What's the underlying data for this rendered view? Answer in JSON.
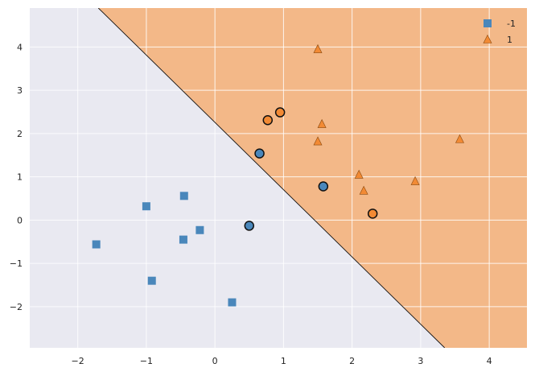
{
  "chart_data": {
    "type": "scatter",
    "title": "",
    "xlabel": "",
    "ylabel": "",
    "xlim": [
      -2.7,
      4.55
    ],
    "ylim": [
      -2.95,
      4.9
    ],
    "x_ticks": [
      -2,
      -1,
      0,
      1,
      2,
      3,
      4
    ],
    "y_ticks": [
      -2,
      -1,
      0,
      1,
      2,
      3,
      4
    ],
    "x_tick_labels": [
      "−2",
      "−1",
      "0",
      "1",
      "2",
      "3",
      "4"
    ],
    "y_tick_labels": [
      "−2",
      "−1",
      "0",
      "1",
      "2",
      "3",
      "4"
    ],
    "grid": true,
    "background": "#e9e9f1",
    "decision_boundary": {
      "points": [
        [
          -1.7,
          4.9
        ],
        [
          3.35,
          -2.95
        ]
      ],
      "region_color_class_1": "#f3b888",
      "region_color_class_neg1": "#e9e9f1"
    },
    "legend": {
      "position": "top-right",
      "entries": [
        {
          "label": "-1",
          "marker": "square",
          "color": "#4a87bb"
        },
        {
          "label": "1",
          "marker": "triangle",
          "color": "#f28a34"
        }
      ]
    },
    "series": [
      {
        "name": "-1",
        "marker": "square",
        "color": "#4a87bb",
        "points": [
          [
            -1.73,
            -0.56
          ],
          [
            -1.0,
            0.32
          ],
          [
            -0.92,
            -1.4
          ],
          [
            -0.45,
            0.56
          ],
          [
            -0.46,
            -0.45
          ],
          [
            -0.22,
            -0.23
          ],
          [
            0.25,
            -1.9
          ]
        ]
      },
      {
        "name": "1",
        "marker": "triangle",
        "color": "#f28a34",
        "points": [
          [
            1.5,
            3.95
          ],
          [
            1.56,
            2.22
          ],
          [
            1.5,
            1.82
          ],
          [
            2.1,
            1.05
          ],
          [
            2.17,
            0.68
          ],
          [
            2.92,
            0.9
          ],
          [
            3.57,
            1.87
          ]
        ]
      }
    ],
    "support_vectors": [
      {
        "x": 0.77,
        "y": 2.31,
        "class": "1",
        "color": "#f28a34"
      },
      {
        "x": 0.95,
        "y": 2.49,
        "class": "1",
        "color": "#f28a34"
      },
      {
        "x": 2.3,
        "y": 0.15,
        "class": "1",
        "color": "#f28a34"
      },
      {
        "x": 0.65,
        "y": 1.54,
        "class": "-1",
        "color": "#4a87bb"
      },
      {
        "x": 1.58,
        "y": 0.78,
        "class": "-1",
        "color": "#4a87bb"
      },
      {
        "x": 0.5,
        "y": -0.13,
        "class": "-1",
        "color": "#4a87bb"
      }
    ]
  }
}
